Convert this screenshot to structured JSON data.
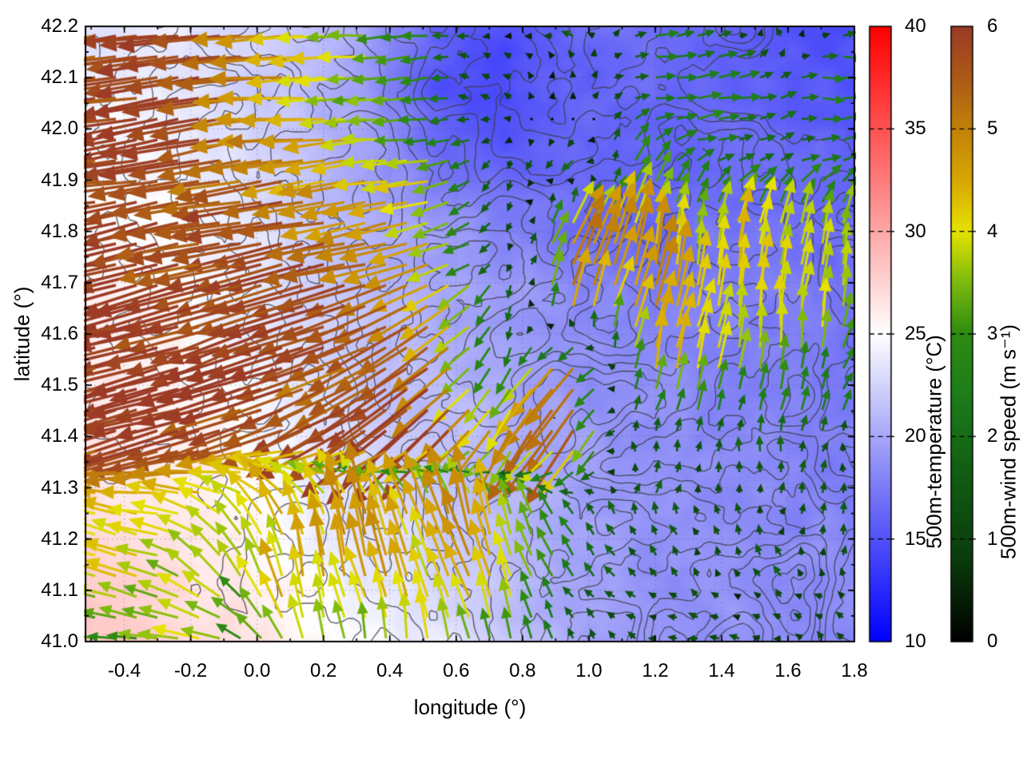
{
  "figure": {
    "background": "#ffffff",
    "axes": {
      "xlabel": "longitude (°)",
      "ylabel": "latitude (°)",
      "xlim": [
        -0.517,
        1.8
      ],
      "ylim": [
        41.0,
        42.2
      ],
      "x_ticks": {
        "values": [
          -0.4,
          -0.2,
          0.0,
          0.2,
          0.4,
          0.6,
          0.8,
          1.0,
          1.2,
          1.4,
          1.6,
          1.8
        ],
        "labels": [
          "-0.4",
          "-0.2",
          "0.0",
          "0.2",
          "0.4",
          "0.6",
          "0.8",
          "1.0",
          "1.2",
          "1.4",
          "1.6",
          "1.8"
        ]
      },
      "y_ticks": {
        "values": [
          41.0,
          41.1,
          41.2,
          41.3,
          41.4,
          41.5,
          41.6,
          41.7,
          41.8,
          41.9,
          42.0,
          42.1,
          42.2
        ],
        "labels": [
          "41.0",
          "41.1",
          "41.2",
          "41.3",
          "41.4",
          "41.5",
          "41.6",
          "41.7",
          "41.8",
          "41.9",
          "42.0",
          "42.1",
          "42.2"
        ]
      },
      "x_minor_step": 0.1,
      "y_minor_step": 0.05,
      "grid_color": "rgba(90,90,100,0.5)",
      "border_color": "#000000"
    },
    "colorbars": [
      {
        "id": "temperature",
        "title": "500m-temperature (°C)",
        "min": 10,
        "max": 40,
        "ticks": {
          "values": [
            10,
            15,
            20,
            25,
            30,
            35,
            40
          ],
          "labels": [
            "10",
            "15",
            "20",
            "25",
            "30",
            "35",
            "40"
          ]
        },
        "stops": [
          [
            10,
            "#0000ff"
          ],
          [
            17.5,
            "#7c7cf6"
          ],
          [
            25,
            "#ffffff"
          ],
          [
            32.5,
            "#ff7c7c"
          ],
          [
            40,
            "#ff0000"
          ]
        ]
      },
      {
        "id": "wind-speed",
        "title": "500m-wind speed (m s⁻¹)",
        "min": 0,
        "max": 6,
        "ticks": {
          "values": [
            0,
            1,
            2,
            3,
            4,
            5,
            6
          ],
          "labels": [
            "0",
            "1",
            "2",
            "3",
            "4",
            "5",
            "6"
          ]
        },
        "stops": [
          [
            0,
            "#000000"
          ],
          [
            0.8,
            "#0a3c0c"
          ],
          [
            1.6,
            "#115c13"
          ],
          [
            2.4,
            "#1d7d1a"
          ],
          [
            3.0,
            "#2e8c12"
          ],
          [
            3.5,
            "#7cba0e"
          ],
          [
            4.0,
            "#e6e300"
          ],
          [
            4.5,
            "#d8a703"
          ],
          [
            5.0,
            "#c28209"
          ],
          [
            5.5,
            "#ac5a17"
          ],
          [
            6.0,
            "#9c3b26"
          ]
        ]
      }
    ]
  },
  "chart_data": {
    "type": "heatmap",
    "xlabel": "longitude (°)",
    "ylabel": "latitude (°)",
    "xlim": [
      -0.517,
      1.8
    ],
    "ylim": [
      41.0,
      42.2
    ],
    "background_variable": "500m-temperature (°C)",
    "background_range": [
      10,
      40
    ],
    "vector_variable": "500m-wind speed (m s⁻¹)",
    "vector_range": [
      0,
      6
    ],
    "temperature_field": {
      "units": "°C",
      "lon": [
        -0.52,
        -0.31,
        -0.1,
        0.11,
        0.32,
        0.53,
        0.74,
        0.95,
        1.16,
        1.37,
        1.59,
        1.8
      ],
      "lat_top_to_bottom": [
        42.2,
        42.07,
        41.93,
        41.8,
        41.67,
        41.53,
        41.4,
        41.27,
        41.13,
        41.0
      ],
      "values": [
        [
          23.5,
          23.8,
          23.2,
          21.8,
          20.0,
          16.0,
          14.8,
          16.2,
          16.8,
          16.2,
          15.2,
          14.8
        ],
        [
          24.2,
          24.2,
          23.0,
          21.4,
          19.2,
          15.2,
          14.4,
          16.0,
          16.4,
          16.0,
          15.6,
          15.2
        ],
        [
          24.8,
          24.8,
          23.4,
          21.8,
          19.8,
          17.0,
          15.8,
          16.6,
          15.8,
          16.8,
          16.4,
          16.0
        ],
        [
          25.4,
          25.0,
          24.0,
          22.4,
          20.8,
          19.4,
          18.2,
          16.8,
          16.2,
          17.2,
          16.8,
          16.4
        ],
        [
          25.8,
          25.4,
          24.4,
          22.8,
          21.4,
          20.4,
          19.4,
          18.4,
          17.8,
          17.8,
          17.4,
          17.0
        ],
        [
          26.0,
          25.8,
          24.8,
          23.4,
          21.8,
          20.8,
          19.8,
          18.8,
          18.4,
          18.2,
          17.8,
          17.4
        ],
        [
          26.4,
          26.0,
          25.4,
          23.8,
          22.4,
          21.4,
          20.4,
          19.4,
          18.8,
          18.4,
          18.0,
          17.8
        ],
        [
          26.8,
          26.4,
          25.8,
          24.4,
          23.2,
          21.8,
          20.8,
          19.8,
          18.8,
          18.4,
          18.2,
          17.8
        ],
        [
          27.8,
          27.0,
          26.4,
          25.2,
          23.8,
          22.8,
          21.2,
          19.8,
          18.8,
          18.8,
          18.4,
          18.2
        ],
        [
          28.4,
          28.0,
          26.8,
          25.8,
          24.8,
          23.8,
          21.8,
          20.2,
          19.2,
          18.8,
          18.8,
          18.4
        ]
      ]
    },
    "wind_field": {
      "units": "m s⁻¹",
      "lon": [
        -0.52,
        -0.31,
        -0.1,
        0.11,
        0.32,
        0.53,
        0.74,
        0.95,
        1.16,
        1.37,
        1.59,
        1.8
      ],
      "lat_top_to_bottom": [
        42.2,
        42.07,
        41.93,
        41.8,
        41.67,
        41.53,
        41.4,
        41.27,
        41.13,
        41.0
      ],
      "u": [
        [
          -5.6,
          -5.6,
          -5.4,
          -4.6,
          -3.6,
          -2.2,
          -0.4,
          -1.2,
          1.8,
          2.2,
          -1.0,
          2.0
        ],
        [
          -5.7,
          -5.7,
          -5.5,
          -4.6,
          -3.4,
          -2.6,
          -0.6,
          0.3,
          2.3,
          2.4,
          2.2,
          2.4
        ],
        [
          -5.8,
          -5.8,
          -5.6,
          -4.8,
          -4.2,
          -3.6,
          -0.6,
          -1.2,
          1.4,
          2.2,
          1.8,
          2.4
        ],
        [
          -5.9,
          -5.9,
          -5.8,
          -5.4,
          -5.0,
          -4.2,
          -0.8,
          2.0,
          1.0,
          0.5,
          0.8,
          0.4
        ],
        [
          -5.9,
          -5.9,
          -5.8,
          -5.6,
          -5.2,
          -4.4,
          -0.4,
          1.4,
          1.2,
          0.6,
          0.3,
          0.5
        ],
        [
          -5.8,
          -5.8,
          -5.7,
          -5.5,
          -5.0,
          -4.2,
          -1.2,
          -3.4,
          1.0,
          1.0,
          0.5,
          1.2
        ],
        [
          -5.6,
          -5.7,
          -5.6,
          -5.4,
          -4.8,
          -4.4,
          -2.8,
          -3.0,
          0.4,
          0.2,
          0.3,
          0.5
        ],
        [
          -4.2,
          -4.4,
          -3.4,
          -2.0,
          -1.8,
          -1.4,
          -1.2,
          -1.6,
          0.3,
          -0.3,
          0.2,
          0.4
        ],
        [
          -3.8,
          -3.6,
          -2.4,
          -0.8,
          -1.2,
          -1.6,
          -1.4,
          -1.6,
          -0.9,
          -0.8,
          -0.9,
          0.0
        ],
        [
          -2.8,
          -3.4,
          -3.6,
          -1.4,
          -0.8,
          -0.8,
          0.0,
          -1.0,
          -1.2,
          -1.1,
          -0.9,
          -0.8
        ]
      ],
      "v": [
        [
          -0.6,
          -0.6,
          -0.8,
          -0.4,
          0.0,
          0.4,
          0.2,
          0.6,
          0.4,
          0.4,
          0.6,
          0.2
        ],
        [
          -0.7,
          -0.8,
          -0.9,
          -0.5,
          -0.3,
          -0.5,
          0.3,
          0.3,
          0.3,
          0.2,
          0.5,
          0.2
        ],
        [
          -0.9,
          -1.0,
          -1.0,
          -0.8,
          -0.6,
          -0.5,
          -1.4,
          -1.2,
          3.0,
          0.6,
          1.2,
          0.4
        ],
        [
          -1.1,
          -1.2,
          -1.2,
          -1.1,
          -1.0,
          -0.9,
          -1.0,
          4.6,
          4.0,
          3.8,
          4.2,
          3.6
        ],
        [
          -1.4,
          -1.4,
          -1.5,
          -1.5,
          -1.6,
          -2.4,
          -1.8,
          4.8,
          4.6,
          4.2,
          3.8,
          4.0
        ],
        [
          -1.8,
          -1.8,
          -1.9,
          -2.0,
          -2.6,
          -3.4,
          -2.6,
          -4.2,
          4.4,
          4.0,
          3.4,
          2.2
        ],
        [
          -1.6,
          -1.8,
          -1.9,
          -2.1,
          -3.6,
          -4.0,
          -4.4,
          -4.6,
          1.8,
          1.5,
          1.6,
          1.4
        ],
        [
          1.0,
          0.4,
          2.2,
          3.6,
          4.4,
          4.8,
          4.0,
          1.6,
          1.5,
          1.4,
          1.3,
          1.2
        ],
        [
          0.8,
          1.2,
          2.6,
          4.4,
          4.4,
          4.0,
          4.2,
          2.0,
          1.0,
          0.9,
          1.0,
          1.0
        ],
        [
          0.4,
          0.7,
          1.0,
          3.6,
          3.8,
          4.0,
          2.6,
          1.2,
          0.5,
          0.4,
          0.6,
          0.5
        ]
      ]
    },
    "contour_lines": {
      "color": "#3b3b42",
      "style": "irregular terrain-like gray contours"
    }
  }
}
